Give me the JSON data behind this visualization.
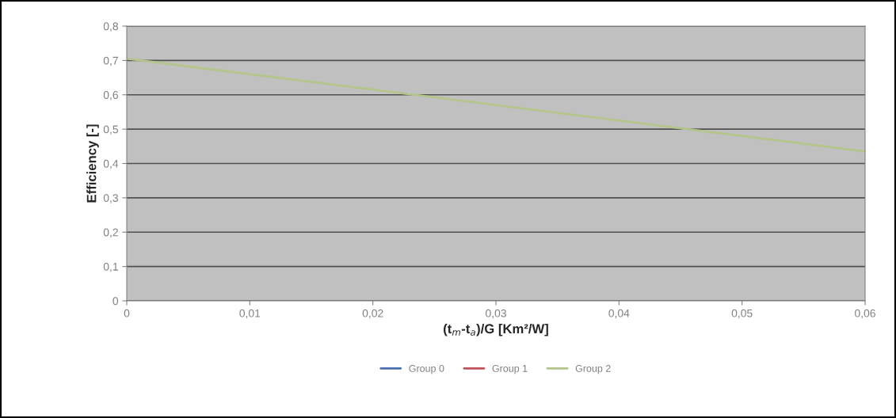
{
  "chart_data": {
    "type": "line",
    "xlabel": "(t$_{m}$-t$_{a}$)/G [Km²/W]",
    "ylabel": "Efficiency [-]",
    "xlim": [
      0,
      0.06
    ],
    "ylim": [
      0,
      0.8
    ],
    "xticks": [
      0,
      {
        "value": 0.01,
        "label": "0,01"
      },
      {
        "value": 0.02,
        "label": "0,02"
      },
      {
        "value": 0.03,
        "label": "0,03"
      },
      {
        "value": 0.04,
        "label": "0,04"
      },
      {
        "value": 0.05,
        "label": "0,05"
      },
      {
        "value": 0.06,
        "label": "0,06"
      }
    ],
    "yticks": [
      0,
      {
        "value": 0.1,
        "label": "0,1"
      },
      {
        "value": 0.2,
        "label": "0,2"
      },
      {
        "value": 0.3,
        "label": "0,3"
      },
      {
        "value": 0.4,
        "label": "0,4"
      },
      {
        "value": 0.5,
        "label": "0,5"
      },
      {
        "value": 0.6,
        "label": "0,6"
      },
      {
        "value": 0.7,
        "label": "0,7"
      },
      {
        "value": 0.8,
        "label": "0,8"
      }
    ],
    "x": [
      0,
      0.06
    ],
    "series": [
      {
        "name": "Group 0",
        "color": "#4a6fb0",
        "values": [
          null,
          null
        ]
      },
      {
        "name": "Group 1",
        "color": "#c0505a",
        "values": [
          null,
          null
        ]
      },
      {
        "name": "Group 2",
        "color": "#b5c48a",
        "values": [
          0.705,
          0.435
        ]
      }
    ],
    "grid": "y",
    "legend": "bottom",
    "marker": "none",
    "line_style": "solid"
  }
}
